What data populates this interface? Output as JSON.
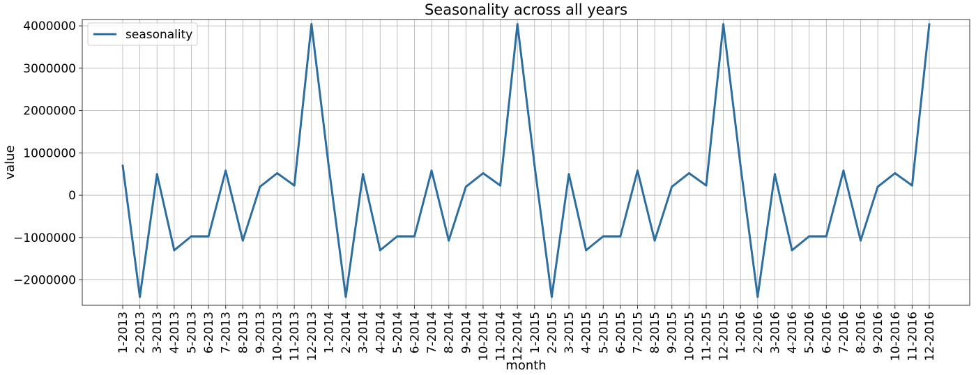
{
  "chart_data": {
    "type": "line",
    "title": "Seasonality across all years",
    "xlabel": "month",
    "ylabel": "value",
    "ylim": [
      -2600000,
      4150000
    ],
    "yticks": [
      -2000000,
      -1000000,
      0,
      1000000,
      2000000,
      3000000,
      4000000
    ],
    "ytick_labels": [
      "−2000000",
      "−1000000",
      "0",
      "1000000",
      "2000000",
      "3000000",
      "4000000"
    ],
    "grid": true,
    "legend_position": "top-left",
    "categories": [
      "1-2013",
      "2-2013",
      "3-2013",
      "4-2013",
      "5-2013",
      "6-2013",
      "7-2013",
      "8-2013",
      "9-2013",
      "10-2013",
      "11-2013",
      "12-2013",
      "1-2014",
      "2-2014",
      "3-2014",
      "4-2014",
      "5-2014",
      "6-2014",
      "7-2014",
      "8-2014",
      "9-2014",
      "10-2014",
      "11-2014",
      "12-2014",
      "1-2015",
      "2-2015",
      "3-2015",
      "4-2015",
      "5-2015",
      "6-2015",
      "7-2015",
      "8-2015",
      "9-2015",
      "10-2015",
      "11-2015",
      "12-2015",
      "1-2016",
      "2-2016",
      "3-2016",
      "4-2016",
      "5-2016",
      "6-2016",
      "7-2016",
      "8-2016",
      "9-2016",
      "10-2016",
      "11-2016",
      "12-2016"
    ],
    "series": [
      {
        "name": "seasonality",
        "color": "#2c6e9f",
        "values": [
          700000,
          -2400000,
          500000,
          -1300000,
          -970000,
          -970000,
          580000,
          -1070000,
          200000,
          520000,
          230000,
          4040000,
          700000,
          -2400000,
          500000,
          -1300000,
          -970000,
          -970000,
          580000,
          -1070000,
          200000,
          520000,
          230000,
          4040000,
          700000,
          -2400000,
          500000,
          -1300000,
          -970000,
          -970000,
          580000,
          -1070000,
          200000,
          520000,
          230000,
          4040000,
          700000,
          -2400000,
          500000,
          -1300000,
          -970000,
          -970000,
          580000,
          -1070000,
          200000,
          520000,
          230000,
          4040000
        ]
      }
    ]
  }
}
